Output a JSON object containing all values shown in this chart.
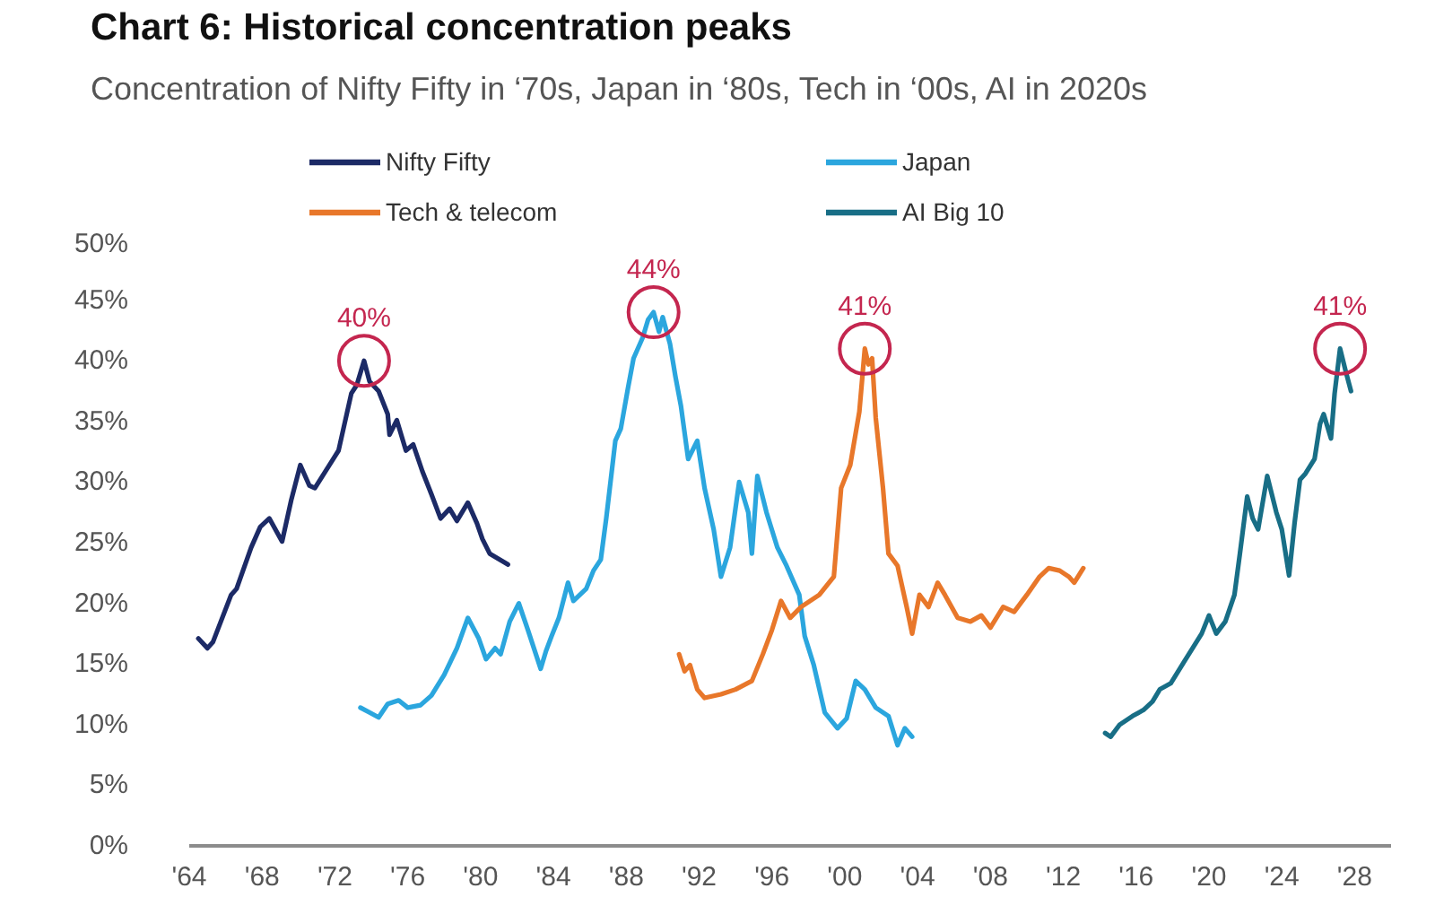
{
  "chart_data": {
    "type": "line",
    "title": "Chart 6: Historical concentration peaks",
    "subtitle": "Concentration of Nifty Fifty in ‘70s, Japan in ‘80s, Tech in ‘00s, AI in 2020s",
    "xlim": [
      1964,
      2030
    ],
    "xticks": [
      {
        "value": 1964,
        "label": "'64"
      },
      {
        "value": 1968,
        "label": "'68"
      },
      {
        "value": 1972,
        "label": "'72"
      },
      {
        "value": 1976,
        "label": "'76"
      },
      {
        "value": 1980,
        "label": "'80"
      },
      {
        "value": 1984,
        "label": "'84"
      },
      {
        "value": 1988,
        "label": "'88"
      },
      {
        "value": 1992,
        "label": "'92"
      },
      {
        "value": 1996,
        "label": "'96"
      },
      {
        "value": 2000,
        "label": "'00"
      },
      {
        "value": 2004,
        "label": "'04"
      },
      {
        "value": 2008,
        "label": "'08"
      },
      {
        "value": 2012,
        "label": "'12"
      },
      {
        "value": 2016,
        "label": "'16"
      },
      {
        "value": 2020,
        "label": "'20"
      },
      {
        "value": 2024,
        "label": "'24"
      },
      {
        "value": 2028,
        "label": "'28"
      }
    ],
    "ylim": [
      0,
      50
    ],
    "yticks": [
      {
        "value": 0,
        "label": "0%"
      },
      {
        "value": 5,
        "label": "5%"
      },
      {
        "value": 10,
        "label": "10%"
      },
      {
        "value": 15,
        "label": "15%"
      },
      {
        "value": 20,
        "label": "20%"
      },
      {
        "value": 25,
        "label": "25%"
      },
      {
        "value": 30,
        "label": "30%"
      },
      {
        "value": 35,
        "label": "35%"
      },
      {
        "value": 40,
        "label": "40%"
      },
      {
        "value": 45,
        "label": "45%"
      },
      {
        "value": 50,
        "label": "50%"
      }
    ],
    "legend": "top",
    "series": [
      {
        "name": "Nifty Fifty",
        "color": "#1c2a66",
        "x": [
          1964.5,
          1965.0,
          1965.3,
          1966.3,
          1966.6,
          1967.4,
          1967.9,
          1968.4,
          1969.1,
          1969.6,
          1970.1,
          1970.6,
          1970.9,
          1971.7,
          1972.2,
          1972.9,
          1973.2,
          1973.6,
          1973.9,
          1974.4,
          1974.9,
          1975.0,
          1975.4,
          1975.9,
          1976.3,
          1976.8,
          1977.3,
          1977.8,
          1978.3,
          1978.7,
          1979.3,
          1979.8,
          1980.1,
          1980.5,
          1981.5
        ],
        "values": [
          17.1,
          16.3,
          16.8,
          20.7,
          21.2,
          24.6,
          26.3,
          27.0,
          25.1,
          28.5,
          31.4,
          29.7,
          29.5,
          31.4,
          32.6,
          37.3,
          38.0,
          40.0,
          38.3,
          37.5,
          35.6,
          33.9,
          35.1,
          32.6,
          33.1,
          30.9,
          29.0,
          27.0,
          27.8,
          26.8,
          28.3,
          26.6,
          25.3,
          24.1,
          23.2
        ]
      },
      {
        "name": "Japan",
        "color": "#2ba6de",
        "x": [
          1973.4,
          1973.9,
          1974.4,
          1974.9,
          1975.5,
          1976.0,
          1976.7,
          1977.3,
          1978.0,
          1978.7,
          1979.3,
          1979.9,
          1980.3,
          1980.8,
          1981.1,
          1981.6,
          1982.1,
          1982.6,
          1983.3,
          1983.6,
          1983.9,
          1984.3,
          1984.8,
          1985.1,
          1985.8,
          1986.2,
          1986.6,
          1986.9,
          1987.4,
          1987.7,
          1988.1,
          1988.4,
          1988.9,
          1989.2,
          1989.5,
          1989.8,
          1990.0,
          1990.4,
          1990.7,
          1991.0,
          1991.4,
          1991.9,
          1992.3,
          1992.8,
          1993.2,
          1993.7,
          1994.2,
          1994.7,
          1994.9,
          1995.2,
          1995.7,
          1996.3,
          1996.8,
          1997.5,
          1997.8,
          1998.3,
          1998.9,
          1999.6,
          2000.1,
          2000.6,
          2001.1,
          2001.7,
          2002.4,
          2002.9,
          2003.3,
          2003.7
        ],
        "values": [
          11.4,
          11.0,
          10.6,
          11.7,
          12.0,
          11.4,
          11.6,
          12.4,
          14.1,
          16.3,
          18.8,
          17.1,
          15.4,
          16.3,
          15.8,
          18.5,
          20.0,
          17.8,
          14.6,
          16.1,
          17.3,
          18.8,
          21.7,
          20.2,
          21.2,
          22.7,
          23.6,
          27.0,
          33.4,
          34.4,
          37.8,
          40.2,
          41.9,
          43.4,
          44.0,
          42.4,
          43.6,
          41.4,
          38.7,
          36.3,
          31.9,
          33.4,
          29.5,
          26.1,
          22.2,
          24.6,
          30.0,
          27.5,
          24.1,
          30.5,
          27.5,
          24.6,
          23.1,
          20.7,
          17.3,
          14.9,
          11.0,
          9.7,
          10.5,
          13.6,
          12.9,
          11.4,
          10.7,
          8.3,
          9.7,
          9.0
        ]
      },
      {
        "name": "Tech & telecom",
        "color": "#e8772a",
        "x": [
          1990.9,
          1991.2,
          1991.5,
          1991.9,
          1992.3,
          1993.2,
          1994.0,
          1994.9,
          1995.5,
          1996.0,
          1996.5,
          1997.0,
          1997.6,
          1998.6,
          1999.4,
          1999.8,
          2000.3,
          2000.8,
          2001.1,
          2001.3,
          2001.5,
          2001.7,
          2002.1,
          2002.4,
          2002.9,
          2003.4,
          2003.7,
          2004.1,
          2004.6,
          2005.1,
          2005.5,
          2006.2,
          2006.9,
          2007.5,
          2008.0,
          2008.7,
          2009.3,
          2010.0,
          2010.7,
          2011.2,
          2011.8,
          2012.3,
          2012.6,
          2013.1
        ],
        "values": [
          15.8,
          14.4,
          14.9,
          12.9,
          12.2,
          12.5,
          12.9,
          13.6,
          15.8,
          17.8,
          20.2,
          18.8,
          19.7,
          20.7,
          22.2,
          29.5,
          31.4,
          35.8,
          41,
          39.7,
          40.2,
          35.3,
          29.5,
          24.1,
          23.1,
          19.7,
          17.5,
          20.7,
          19.7,
          21.7,
          20.7,
          18.8,
          18.5,
          19.0,
          18.0,
          19.7,
          19.3,
          20.7,
          22.2,
          22.9,
          22.7,
          22.2,
          21.7,
          22.9
        ]
      },
      {
        "name": "AI Big 10",
        "color": "#186e86",
        "x": [
          2014.3,
          2014.6,
          2015.1,
          2015.8,
          2016.4,
          2016.9,
          2017.3,
          2017.9,
          2018.6,
          2019.1,
          2019.6,
          2020.0,
          2020.4,
          2020.9,
          2021.4,
          2021.7,
          2022.1,
          2022.4,
          2022.7,
          2023.2,
          2023.7,
          2024.0,
          2024.4,
          2024.7,
          2025.0,
          2025.3,
          2025.8,
          2026.1,
          2026.3,
          2026.7,
          2026.9,
          2027.2,
          2027.5,
          2027.8
        ],
        "values": [
          9.3,
          9.0,
          10.0,
          10.7,
          11.2,
          11.9,
          12.9,
          13.4,
          15.1,
          16.3,
          17.5,
          19.0,
          17.5,
          18.5,
          20.7,
          24.1,
          28.8,
          27.0,
          26.1,
          30.5,
          27.5,
          26.1,
          22.3,
          26.6,
          30.2,
          30.7,
          31.9,
          34.8,
          35.6,
          33.6,
          37.3,
          41,
          39.2,
          37.5
        ]
      }
    ],
    "annotations": [
      {
        "text": "40%",
        "x": 1973.6,
        "y": 40
      },
      {
        "text": "44%",
        "x": 1989.5,
        "y": 44
      },
      {
        "text": "41%",
        "x": 2001.1,
        "y": 41
      },
      {
        "text": "41%",
        "x": 2027.2,
        "y": 41
      }
    ]
  }
}
